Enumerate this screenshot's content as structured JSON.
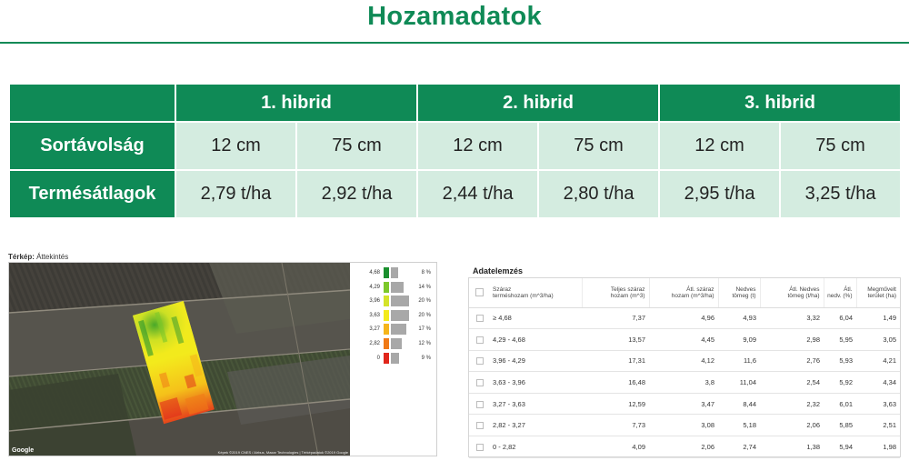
{
  "page": {
    "title": "Hozamadatok"
  },
  "summary": {
    "hybrids": [
      "1. hibrid",
      "2. hibrid",
      "3. hibrid"
    ],
    "row_spacing_label": "Sortávolság",
    "yield_label": "Termésátlagok",
    "spacings": [
      "12 cm",
      "75 cm",
      "12 cm",
      "75 cm",
      "12 cm",
      "75 cm"
    ],
    "yields": [
      "2,79 t/ha",
      "2,92 t/ha",
      "2,44 t/ha",
      "2,80 t/ha",
      "2,95 t/ha",
      "3,25 t/ha"
    ]
  },
  "map": {
    "label_bold": "Térkép:",
    "label_rest": " Áttekintés",
    "google": "Google",
    "attribution": "Képek ©2019 CNES / Airbus, Maxar Technologies | Térképadatok ©2019 Google",
    "legend": [
      {
        "value": "4,68",
        "pct": "8 %",
        "share": 8,
        "color": "#1a8f2e"
      },
      {
        "value": "4,29",
        "pct": "14 %",
        "share": 14,
        "color": "#7cc82a"
      },
      {
        "value": "3,96",
        "pct": "20 %",
        "share": 20,
        "color": "#d4e32a"
      },
      {
        "value": "3,63",
        "pct": "20 %",
        "share": 20,
        "color": "#f3ea1c"
      },
      {
        "value": "3,27",
        "pct": "17 %",
        "share": 17,
        "color": "#f5b51a"
      },
      {
        "value": "2,82",
        "pct": "12 %",
        "share": 12,
        "color": "#f07a17"
      },
      {
        "value": "0",
        "pct": "9 %",
        "share": 9,
        "color": "#e0261b"
      }
    ]
  },
  "analysis": {
    "title": "Adatelemzés",
    "headers": [
      [
        "Száraz",
        "terméshozam (m^3/ha)"
      ],
      [
        "Teljes száraz",
        "hozam (m^3)"
      ],
      [
        "Átl. száraz",
        "hozam (m^3/ha)"
      ],
      [
        "Nedves",
        "tömeg (t)"
      ],
      [
        "Átl. Nedves",
        "tömeg (t/ha)"
      ],
      [
        "Átl.",
        "nedv. (%)"
      ],
      [
        "Megművelt",
        "terület (ha)"
      ]
    ],
    "rows": [
      [
        "≥ 4,68",
        "7,37",
        "4,96",
        "4,93",
        "3,32",
        "6,04",
        "1,49"
      ],
      [
        "4,29 - 4,68",
        "13,57",
        "4,45",
        "9,09",
        "2,98",
        "5,95",
        "3,05"
      ],
      [
        "3,96 - 4,29",
        "17,31",
        "4,12",
        "11,6",
        "2,76",
        "5,93",
        "4,21"
      ],
      [
        "3,63 - 3,96",
        "16,48",
        "3,8",
        "11,04",
        "2,54",
        "5,92",
        "4,34"
      ],
      [
        "3,27 - 3,63",
        "12,59",
        "3,47",
        "8,44",
        "2,32",
        "6,01",
        "3,63"
      ],
      [
        "2,82 - 3,27",
        "7,73",
        "3,08",
        "5,18",
        "2,06",
        "5,85",
        "2,51"
      ],
      [
        "0 - 2,82",
        "4,09",
        "2,06",
        "2,74",
        "1,38",
        "5,94",
        "1,98"
      ]
    ]
  }
}
